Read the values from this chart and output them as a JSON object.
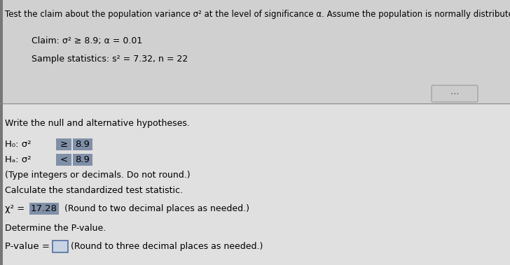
{
  "bg_color": "#e0e0e0",
  "top_section_bg": "#d0d0d0",
  "title_text": "Test the claim about the population variance σ² at the level of significance α. Assume the population is normally distributed.",
  "claim_text": "Claim: σ² ≥ 8.9; α = 0.01",
  "sample_text": "Sample statistics: s² = 7.32, n = 22",
  "write_hyp_text": "Write the null and alternative hypotheses.",
  "H0_prefix": "H₀: σ²",
  "H0_operator": "≥",
  "H0_value": "8.9",
  "Ha_prefix": "Hₐ: σ²",
  "Ha_operator": "<",
  "Ha_value": "8.9",
  "type_note": "(Type integers or decimals. Do not round.)",
  "calc_text": "Calculate the standardized test statistic.",
  "chi_prefix": "χ² =",
  "chi_value": "17.28",
  "chi_suffix": " (Round to two decimal places as needed.)",
  "determine_text": "Determine the P-value.",
  "pvalue_prefix": "P-value = ",
  "pvalue_suffix": "(Round to three decimal places as needed.)",
  "highlight_color": "#8090a8",
  "box_border_color": "#5070a0",
  "divider_color": "#888888",
  "dots_bg": "#cccccc",
  "left_bar_color": "#777777",
  "font_size_title": 8.5,
  "font_size_body": 9.0,
  "font_size_hyp": 9.5
}
